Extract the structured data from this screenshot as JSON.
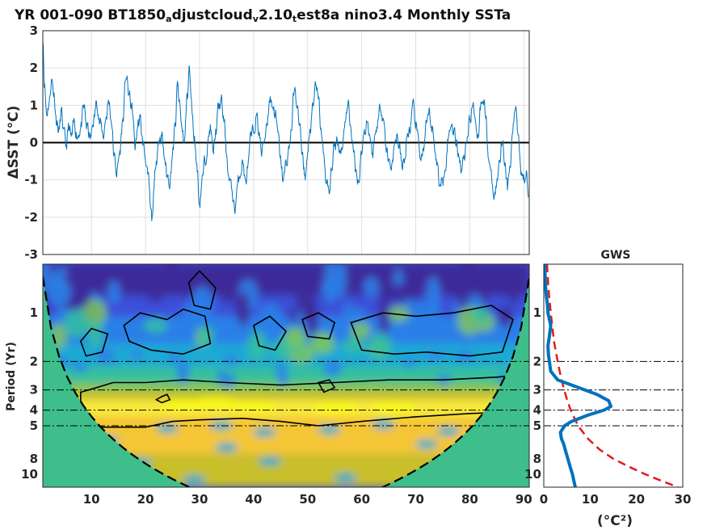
{
  "title": {
    "parts": [
      {
        "text": "YR 001-090 BT1850",
        "sub": false
      },
      {
        "text": "a",
        "sub": true
      },
      {
        "text": "djustcloud",
        "sub": false
      },
      {
        "text": "v",
        "sub": true
      },
      {
        "text": "2.10",
        "sub": false
      },
      {
        "text": "t",
        "sub": true
      },
      {
        "text": "est8a nino3.4 Monthly SSTa",
        "sub": false
      }
    ]
  },
  "colors": {
    "series_line": "#0072bd",
    "gws_line": "#0072bd",
    "significance_line": "#e31a1c",
    "zero_line": "#000000",
    "coi_fill": "#3dbe8a",
    "colormap": [
      "#3e2a9a",
      "#3a50d8",
      "#2b7fe8",
      "#1fa9d4",
      "#34bf9f",
      "#7fc65a",
      "#c8bf2c",
      "#f5c635",
      "#f9e93a",
      "#f9fb0e"
    ]
  },
  "chart_data": [
    {
      "type": "line",
      "name": "timeseries",
      "x_start": 1,
      "x_end": 90.9,
      "step": 0.0833,
      "xlim": [
        1,
        91
      ],
      "ylim": [
        -3,
        3
      ],
      "yticks": [
        -3,
        -2,
        -1,
        0,
        1,
        2,
        3
      ],
      "ylabel": "ΔSST (°C)",
      "grid": true,
      "zero_line": true,
      "anchors": [
        [
          1.0,
          2.9
        ],
        [
          1.3,
          1.6
        ],
        [
          1.7,
          0.8
        ],
        [
          2.2,
          1.1
        ],
        [
          2.6,
          1.7
        ],
        [
          3.1,
          1.3
        ],
        [
          3.5,
          0.6
        ],
        [
          4.0,
          0.3
        ],
        [
          4.4,
          0.8
        ],
        [
          4.9,
          0.2
        ],
        [
          5.3,
          -0.1
        ],
        [
          5.8,
          0.4
        ],
        [
          6.3,
          0.1
        ],
        [
          6.8,
          0.5
        ],
        [
          7.4,
          0.2
        ],
        [
          8.0,
          0.4
        ],
        [
          8.6,
          0.9
        ],
        [
          9.2,
          0.4
        ],
        [
          9.8,
          0.1
        ],
        [
          10.4,
          0.6
        ],
        [
          11.0,
          1.1
        ],
        [
          11.6,
          0.5
        ],
        [
          12.2,
          0.2
        ],
        [
          12.7,
          0.7
        ],
        [
          13.2,
          1.1
        ],
        [
          13.7,
          0.6
        ],
        [
          14.2,
          -0.4
        ],
        [
          14.7,
          -0.8
        ],
        [
          15.2,
          -0.3
        ],
        [
          15.8,
          0.6
        ],
        [
          16.4,
          1.8
        ],
        [
          16.9,
          1.3
        ],
        [
          17.5,
          0.9
        ],
        [
          18.1,
          -0.1
        ],
        [
          18.6,
          0.5
        ],
        [
          19.0,
          0.6
        ],
        [
          19.5,
          0.0
        ],
        [
          20.0,
          -0.4
        ],
        [
          20.5,
          -1.0
        ],
        [
          21.0,
          -1.9
        ],
        [
          21.2,
          -2.1
        ],
        [
          21.5,
          -1.4
        ],
        [
          22.0,
          -0.4
        ],
        [
          22.5,
          0.1
        ],
        [
          23.0,
          0.2
        ],
        [
          23.5,
          -0.4
        ],
        [
          24.0,
          -0.9
        ],
        [
          24.5,
          -1.0
        ],
        [
          25.0,
          -0.3
        ],
        [
          25.5,
          0.4
        ],
        [
          25.9,
          1.5
        ],
        [
          26.3,
          1.0
        ],
        [
          26.7,
          0.4
        ],
        [
          27.2,
          0.0
        ],
        [
          27.7,
          1.2
        ],
        [
          28.1,
          2.0
        ],
        [
          28.5,
          1.0
        ],
        [
          29.0,
          0.2
        ],
        [
          29.5,
          -0.6
        ],
        [
          30.0,
          -1.6
        ],
        [
          30.5,
          -1.0
        ],
        [
          31.0,
          -0.5
        ],
        [
          31.5,
          0.0
        ],
        [
          32.0,
          0.4
        ],
        [
          32.5,
          -0.3
        ],
        [
          33.0,
          0.3
        ],
        [
          33.5,
          0.9
        ],
        [
          34.0,
          1.1
        ],
        [
          34.5,
          0.6
        ],
        [
          35.0,
          -0.3
        ],
        [
          35.5,
          -1.0
        ],
        [
          36.0,
          -1.3
        ],
        [
          36.5,
          -1.8
        ],
        [
          37.0,
          -1.2
        ],
        [
          37.5,
          -0.8
        ],
        [
          38.0,
          -0.5
        ],
        [
          38.5,
          -1.1
        ],
        [
          39.0,
          -0.6
        ],
        [
          39.5,
          0.1
        ],
        [
          40.0,
          0.3
        ],
        [
          40.5,
          0.7
        ],
        [
          41.0,
          0.3
        ],
        [
          41.5,
          -0.3
        ],
        [
          42.0,
          0.1
        ],
        [
          42.5,
          0.6
        ],
        [
          43.0,
          1.2
        ],
        [
          43.5,
          1.0
        ],
        [
          44.0,
          0.8
        ],
        [
          44.5,
          0.2
        ],
        [
          45.0,
          -0.5
        ],
        [
          45.5,
          -1.0
        ],
        [
          46.0,
          -0.6
        ],
        [
          46.5,
          -0.2
        ],
        [
          47.0,
          0.4
        ],
        [
          47.5,
          1.4
        ],
        [
          48.0,
          1.1
        ],
        [
          48.5,
          0.4
        ],
        [
          49.0,
          -0.3
        ],
        [
          49.5,
          -0.9
        ],
        [
          50.0,
          -0.4
        ],
        [
          50.5,
          0.4
        ],
        [
          51.0,
          0.9
        ],
        [
          51.5,
          1.6
        ],
        [
          52.0,
          1.1
        ],
        [
          52.5,
          0.3
        ],
        [
          53.0,
          -0.4
        ],
        [
          53.5,
          -1.1
        ],
        [
          54.0,
          -1.4
        ],
        [
          54.5,
          -0.6
        ],
        [
          55.0,
          -0.1
        ],
        [
          55.5,
          0.1
        ],
        [
          56.0,
          -0.2
        ],
        [
          56.5,
          0.0
        ],
        [
          57.0,
          0.7
        ],
        [
          57.5,
          1.0
        ],
        [
          58.0,
          0.4
        ],
        [
          58.5,
          -0.3
        ],
        [
          59.0,
          -0.8
        ],
        [
          59.5,
          -1.0
        ],
        [
          60.0,
          -0.2
        ],
        [
          60.5,
          0.3
        ],
        [
          61.0,
          0.6
        ],
        [
          61.5,
          0.2
        ],
        [
          62.0,
          -0.3
        ],
        [
          62.5,
          0.2
        ],
        [
          63.0,
          0.6
        ],
        [
          63.5,
          1.0
        ],
        [
          64.0,
          0.7
        ],
        [
          64.5,
          -0.1
        ],
        [
          65.0,
          -0.5
        ],
        [
          65.5,
          -0.6
        ],
        [
          66.0,
          -0.2
        ],
        [
          66.5,
          0.2
        ],
        [
          67.0,
          -0.2
        ],
        [
          67.5,
          -0.7
        ],
        [
          68.0,
          -0.4
        ],
        [
          68.5,
          0.2
        ],
        [
          69.0,
          0.4
        ],
        [
          69.5,
          0.9
        ],
        [
          70.0,
          0.5
        ],
        [
          70.5,
          0.0
        ],
        [
          71.0,
          -0.4
        ],
        [
          71.5,
          -0.2
        ],
        [
          72.0,
          0.4
        ],
        [
          72.5,
          0.8
        ],
        [
          73.0,
          0.4
        ],
        [
          73.5,
          -0.1
        ],
        [
          74.0,
          -0.6
        ],
        [
          74.5,
          -1.2
        ],
        [
          75.0,
          -1.0
        ],
        [
          75.5,
          -0.5
        ],
        [
          76.0,
          0.1
        ],
        [
          76.5,
          0.5
        ],
        [
          77.0,
          0.4
        ],
        [
          77.5,
          0.0
        ],
        [
          78.0,
          -0.3
        ],
        [
          78.5,
          -0.7
        ],
        [
          79.0,
          -0.3
        ],
        [
          79.5,
          0.2
        ],
        [
          80.0,
          0.6
        ],
        [
          80.5,
          1.0
        ],
        [
          81.0,
          0.7
        ],
        [
          81.5,
          0.2
        ],
        [
          82.0,
          1.0
        ],
        [
          82.5,
          1.3
        ],
        [
          83.0,
          0.6
        ],
        [
          83.5,
          -0.4
        ],
        [
          84.0,
          -1.0
        ],
        [
          84.5,
          -1.5
        ],
        [
          85.0,
          -1.1
        ],
        [
          85.5,
          -0.4
        ],
        [
          86.0,
          0.1
        ],
        [
          86.5,
          -0.5
        ],
        [
          87.0,
          -1.2
        ],
        [
          87.5,
          -0.6
        ],
        [
          88.0,
          0.4
        ],
        [
          88.5,
          1.0
        ],
        [
          89.0,
          0.2
        ],
        [
          89.5,
          -0.7
        ],
        [
          90.0,
          -1.0
        ],
        [
          90.5,
          -0.7
        ],
        [
          90.9,
          -1.3
        ]
      ]
    },
    {
      "type": "heatmap",
      "name": "wavelet_power",
      "xlim": [
        1,
        91
      ],
      "xticks": [
        10,
        20,
        30,
        40,
        50,
        60,
        70,
        80,
        90
      ],
      "ylim_period": [
        0.5,
        12
      ],
      "ylog": true,
      "yreverse": true,
      "yticks": [
        1,
        2,
        3,
        4,
        5,
        8,
        10
      ],
      "ylabel": "Period (Yr)",
      "reference_periods": [
        2,
        3,
        4,
        5
      ],
      "cone_of_influence": true,
      "significance_contours": true
    },
    {
      "type": "line",
      "name": "global_wavelet_spectrum",
      "title": "GWS",
      "xlim": [
        0,
        30
      ],
      "xticks": [
        0,
        10,
        20,
        30
      ],
      "xlabel": "(°C²)",
      "ylim_period": [
        0.5,
        12
      ],
      "ylog": true,
      "yticks": [
        1,
        2,
        3,
        4,
        5,
        8,
        10
      ],
      "reference_periods": [
        2,
        3,
        4,
        5
      ],
      "power": {
        "period": [
          0.5,
          0.6,
          0.7,
          0.8,
          0.9,
          1.0,
          1.2,
          1.4,
          1.6,
          1.8,
          2.0,
          2.3,
          2.6,
          2.9,
          3.2,
          3.5,
          3.8,
          4.0,
          4.3,
          4.7,
          5.0,
          5.5,
          6.0,
          6.5,
          7.0,
          8.0,
          9.0,
          10.0,
          11.0,
          12.0
        ],
        "values": [
          0.2,
          0.3,
          0.4,
          0.6,
          0.8,
          0.9,
          1.5,
          1.2,
          0.9,
          1.0,
          1.2,
          1.5,
          3.0,
          7.5,
          11.5,
          14.0,
          14.5,
          13.0,
          9.5,
          6.0,
          4.5,
          3.6,
          3.8,
          4.3,
          4.6,
          5.2,
          5.7,
          6.2,
          6.5,
          6.8
        ]
      },
      "significance": {
        "period": [
          0.5,
          0.7,
          1.0,
          1.5,
          2.0,
          2.5,
          3.0,
          3.5,
          4.0,
          5.0,
          6.0,
          7.0,
          8.0,
          9.0,
          10.0,
          11.0,
          12.0
        ],
        "values": [
          0.7,
          1.0,
          1.5,
          2.2,
          3.0,
          3.7,
          4.4,
          5.1,
          5.8,
          7.4,
          9.5,
          12.0,
          15.0,
          18.5,
          22.0,
          25.5,
          29.0
        ]
      }
    }
  ]
}
